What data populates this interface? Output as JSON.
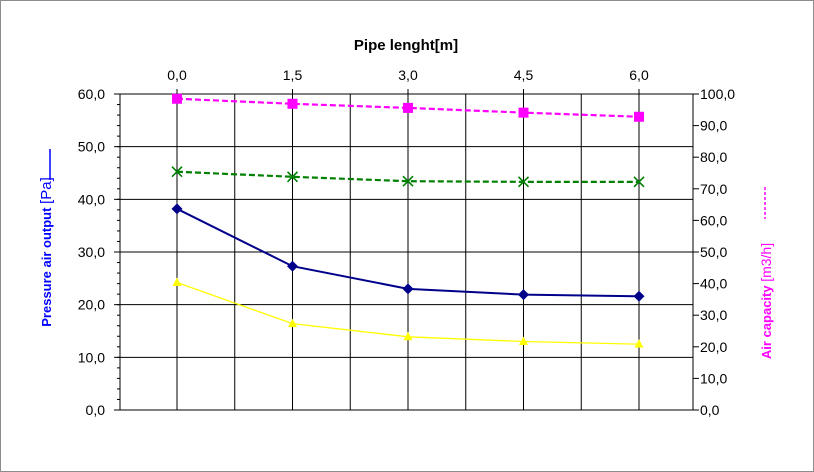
{
  "chart_data": {
    "type": "line",
    "xlabel": "Pipe lenght[m]",
    "x": [
      0.0,
      1.5,
      3.0,
      4.5,
      6.0
    ],
    "x_tick_labels": [
      "0,0",
      "1,5",
      "3,0",
      "4,5",
      "6,0"
    ],
    "ylabel_left": {
      "main": "Pressure air output ",
      "unit": "[Pa]"
    },
    "ylabel_right": {
      "main": "Air capacity ",
      "unit": "[m3/h]"
    },
    "ylim_left": [
      0,
      60
    ],
    "ylim_right": [
      0,
      100
    ],
    "left_tick_labels": [
      "0,0",
      "10,0",
      "20,0",
      "30,0",
      "40,0",
      "50,0",
      "60,0"
    ],
    "right_tick_labels": [
      "0,0",
      "10,0",
      "20,0",
      "30,0",
      "40,0",
      "50,0",
      "60,0",
      "70,0",
      "80,0",
      "90,0",
      "100,0"
    ],
    "grid": true,
    "series": [
      {
        "axis": "left",
        "values": [
          38.2,
          27.3,
          23.0,
          21.9,
          21.6
        ],
        "color": "#00008b",
        "marker": "diamond",
        "dash": "solid"
      },
      {
        "axis": "left",
        "values": [
          24.2,
          16.4,
          13.9,
          13.0,
          12.5
        ],
        "color": "#ffff00",
        "marker": "triangle",
        "dash": "solid"
      },
      {
        "axis": "right",
        "values": [
          98.5,
          96.9,
          95.6,
          94.1,
          92.8
        ],
        "color": "#ff00ff",
        "marker": "square",
        "dash": "dashed"
      },
      {
        "axis": "right",
        "values": [
          75.4,
          73.8,
          72.4,
          72.2,
          72.2
        ],
        "color": "#008000",
        "marker": "x",
        "dash": "dashed"
      }
    ],
    "axis_label_colors": {
      "left": "#0000ff",
      "right": "#ff00ff"
    }
  }
}
